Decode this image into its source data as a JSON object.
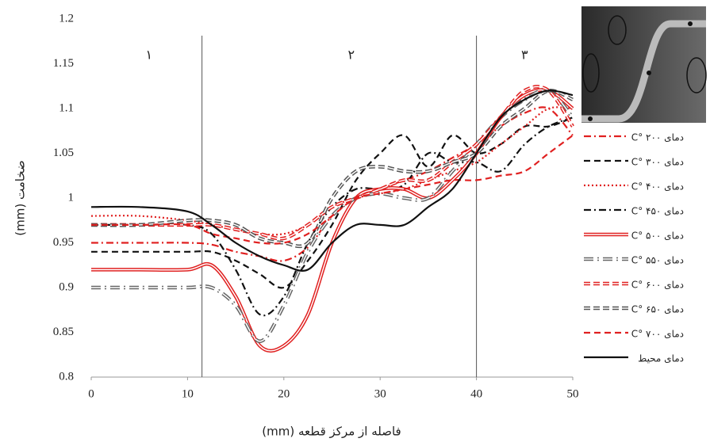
{
  "chart_data": {
    "type": "line",
    "y_label": "ضخامت (mm)",
    "x_label": "فاصله از مرکز قطعه (mm)",
    "xlim": [
      0,
      50
    ],
    "ylim": [
      0.8,
      1.2
    ],
    "xticks": [
      0,
      10,
      20,
      30,
      40,
      50
    ],
    "yticks": [
      0.8,
      0.85,
      0.9,
      0.95,
      1,
      1.05,
      1.1,
      1.15,
      1.2
    ],
    "vlines": [
      11.5,
      40
    ],
    "regions": [
      {
        "label": "۱",
        "x": 6
      },
      {
        "label": "۲",
        "x": 27
      },
      {
        "label": "۳",
        "x": 45
      }
    ],
    "x": [
      0,
      5,
      10,
      12.5,
      15,
      17.5,
      20,
      22.5,
      25,
      27.5,
      30,
      32.5,
      35,
      37.5,
      40,
      42.5,
      45,
      47.5,
      50
    ],
    "series": [
      {
        "name": "دمای ۲۰۰ °C",
        "color": "#e02020",
        "style": "dash-dot",
        "values": [
          0.95,
          0.95,
          0.95,
          0.948,
          0.94,
          0.935,
          0.93,
          0.945,
          0.98,
          1.0,
          1.01,
          1.02,
          1.03,
          1.045,
          1.06,
          1.08,
          1.095,
          1.1,
          1.07
        ]
      },
      {
        "name": "دمای ۳۰۰ °C",
        "color": "#111111",
        "style": "dash",
        "values": [
          0.94,
          0.94,
          0.94,
          0.94,
          0.93,
          0.915,
          0.9,
          0.93,
          0.97,
          1.02,
          1.05,
          1.07,
          1.035,
          1.07,
          1.05,
          1.06,
          1.08,
          1.08,
          1.09
        ]
      },
      {
        "name": "دمای ۴۰۰ °C",
        "color": "#e02020",
        "style": "dot",
        "values": [
          0.98,
          0.98,
          0.975,
          0.97,
          0.965,
          0.96,
          0.96,
          0.97,
          0.99,
          1.0,
          1.005,
          1.01,
          1.02,
          1.03,
          1.04,
          1.06,
          1.08,
          1.1,
          1.1
        ]
      },
      {
        "name": "دمای ۴۵۰ °C",
        "color": "#111111",
        "style": "dash-dot",
        "values": [
          0.97,
          0.97,
          0.97,
          0.96,
          0.92,
          0.87,
          0.89,
          0.95,
          0.99,
          1.01,
          1.01,
          1.015,
          1.05,
          1.04,
          1.04,
          1.03,
          1.06,
          1.08,
          1.09
        ]
      },
      {
        "name": "دمای ۵۰۰ °C",
        "color": "#e02020",
        "style": "double",
        "values": [
          0.92,
          0.92,
          0.92,
          0.925,
          0.89,
          0.835,
          0.835,
          0.87,
          0.95,
          1.0,
          1.01,
          1.01,
          1.0,
          1.02,
          1.05,
          1.09,
          1.115,
          1.12,
          1.1
        ]
      },
      {
        "name": "دمای ۵۵۰ °C",
        "color": "#666666",
        "style": "double-dash-dot",
        "values": [
          0.9,
          0.9,
          0.9,
          0.9,
          0.88,
          0.84,
          0.88,
          0.94,
          0.98,
          1.0,
          1.005,
          1.0,
          1.0,
          1.03,
          1.06,
          1.09,
          1.11,
          1.12,
          1.09
        ]
      },
      {
        "name": "دمای ۶۰۰ °C",
        "color": "#e02020",
        "style": "double-dash",
        "values": [
          0.97,
          0.97,
          0.97,
          0.97,
          0.965,
          0.96,
          0.955,
          0.97,
          0.99,
          1.0,
          1.01,
          1.02,
          1.02,
          1.04,
          1.06,
          1.09,
          1.12,
          1.12,
          1.08
        ]
      },
      {
        "name": "دمای ۶۵۰ °C",
        "color": "#555555",
        "style": "double-dash",
        "values": [
          0.97,
          0.97,
          0.975,
          0.975,
          0.97,
          0.955,
          0.95,
          0.95,
          1.0,
          1.03,
          1.035,
          1.03,
          1.03,
          1.04,
          1.05,
          1.08,
          1.1,
          1.12,
          1.11
        ]
      },
      {
        "name": "دمای ۷۰۰ °C",
        "color": "#e02020",
        "style": "dash",
        "values": [
          0.97,
          0.97,
          0.97,
          0.96,
          0.955,
          0.95,
          0.95,
          0.96,
          0.98,
          1.0,
          1.005,
          1.01,
          1.015,
          1.02,
          1.02,
          1.025,
          1.03,
          1.05,
          1.07
        ]
      },
      {
        "name": "دمای محیط",
        "color": "#111111",
        "style": "solid",
        "values": [
          0.99,
          0.99,
          0.985,
          0.97,
          0.95,
          0.935,
          0.925,
          0.92,
          0.95,
          0.97,
          0.97,
          0.97,
          0.99,
          1.01,
          1.05,
          1.09,
          1.11,
          1.12,
          1.115
        ]
      }
    ]
  }
}
